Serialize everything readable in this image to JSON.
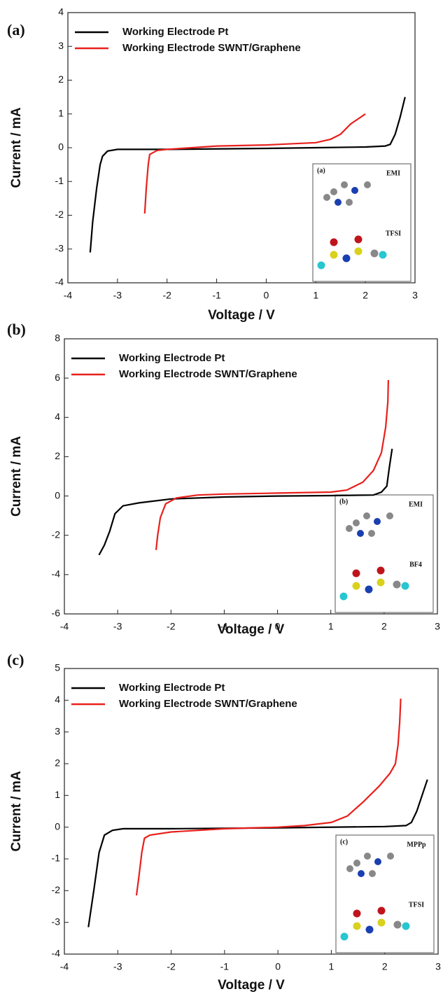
{
  "chart_data": [
    {
      "type": "line",
      "panel_label": "(a)",
      "xlabel": "Voltage / V",
      "ylabel": "Current / mA",
      "xlim": [
        -4,
        3
      ],
      "ylim": [
        -4,
        4
      ],
      "xticks": [
        -4,
        -3,
        -2,
        -1,
        0,
        1,
        2,
        3
      ],
      "yticks": [
        -4,
        -3,
        -2,
        -1,
        0,
        1,
        2,
        3,
        4
      ],
      "series": [
        {
          "name": "Working Electrode Pt",
          "color": "#000000",
          "x": [
            -3.55,
            -3.5,
            -3.42,
            -3.35,
            -3.3,
            -3.2,
            -3.0,
            -2,
            0,
            1,
            2,
            2.4,
            2.5,
            2.6,
            2.7,
            2.8
          ],
          "values": [
            -3.1,
            -2.2,
            -1.2,
            -0.5,
            -0.25,
            -0.1,
            -0.05,
            -0.05,
            -0.02,
            0,
            0.02,
            0.05,
            0.1,
            0.4,
            0.9,
            1.5
          ]
        },
        {
          "name": "Working Electrode SWNT/Graphene",
          "color": "#e8201c",
          "x": [
            -2.45,
            -2.42,
            -2.38,
            -2.35,
            -2.2,
            -2,
            -1,
            0,
            1,
            1.3,
            1.5,
            1.7,
            1.85,
            2
          ],
          "values": [
            -1.95,
            -1.2,
            -0.5,
            -0.2,
            -0.08,
            -0.05,
            0.05,
            0.08,
            0.15,
            0.25,
            0.4,
            0.7,
            0.85,
            1.0
          ]
        }
      ],
      "inset": {
        "label": "(a)",
        "names": [
          "EMI",
          "TFSI"
        ]
      }
    },
    {
      "type": "line",
      "panel_label": "(b)",
      "xlabel": "Voltage / V",
      "ylabel": "Current / mA",
      "xlim": [
        -4,
        3
      ],
      "ylim": [
        -6,
        8
      ],
      "xticks": [
        -4,
        -3,
        -2,
        -1,
        0,
        1,
        2,
        3
      ],
      "yticks": [
        -6,
        -4,
        -2,
        0,
        2,
        4,
        6,
        8
      ],
      "series": [
        {
          "name": "Working Electrode Pt",
          "color": "#000000",
          "x": [
            -3.35,
            -3.25,
            -3.15,
            -3.05,
            -2.9,
            -2.6,
            -2,
            -1,
            0,
            1,
            1.8,
            1.95,
            2.05,
            2.1,
            2.15
          ],
          "values": [
            -3.0,
            -2.5,
            -1.8,
            -0.9,
            -0.5,
            -0.35,
            -0.15,
            -0.05,
            0,
            0.02,
            0.05,
            0.2,
            0.5,
            1.5,
            2.4
          ]
        },
        {
          "name": "Working Electrode SWNT/Graphene",
          "color": "#e8201c",
          "x": [
            -2.28,
            -2.25,
            -2.2,
            -2.1,
            -1.9,
            -1.5,
            -1,
            0,
            1,
            1.3,
            1.6,
            1.8,
            1.95,
            2.03,
            2.07,
            2.08
          ],
          "values": [
            -2.75,
            -2.0,
            -1.1,
            -0.4,
            -0.1,
            0.05,
            0.1,
            0.15,
            0.2,
            0.3,
            0.7,
            1.3,
            2.2,
            3.5,
            4.8,
            5.9
          ]
        }
      ],
      "inset": {
        "label": "(b)",
        "names": [
          "EMI",
          "BF4"
        ]
      }
    },
    {
      "type": "line",
      "panel_label": "(c)",
      "xlabel": "Voltage / V",
      "ylabel": "Current / mA",
      "xlim": [
        -4,
        3
      ],
      "ylim": [
        -4,
        5
      ],
      "xticks": [
        -4,
        -3,
        -2,
        -1,
        0,
        1,
        2,
        3
      ],
      "yticks": [
        -4,
        -3,
        -2,
        -1,
        0,
        1,
        2,
        3,
        4,
        5
      ],
      "series": [
        {
          "name": "Working Electrode Pt",
          "color": "#000000",
          "x": [
            -3.55,
            -3.45,
            -3.35,
            -3.25,
            -3.1,
            -2.9,
            -2,
            0,
            2,
            2.4,
            2.5,
            2.6,
            2.7,
            2.8
          ],
          "values": [
            -3.15,
            -2,
            -0.8,
            -0.25,
            -0.1,
            -0.05,
            -0.05,
            -0.02,
            0.02,
            0.05,
            0.15,
            0.5,
            1.0,
            1.5
          ]
        },
        {
          "name": "Working Electrode SWNT/Graphene",
          "color": "#e8201c",
          "x": [
            -2.65,
            -2.6,
            -2.55,
            -2.5,
            -2.4,
            -2,
            -1,
            0,
            0.5,
            1,
            1.3,
            1.6,
            1.9,
            2.1,
            2.2,
            2.25,
            2.28,
            2.3
          ],
          "values": [
            -2.15,
            -1.5,
            -0.8,
            -0.35,
            -0.25,
            -0.15,
            -0.05,
            0,
            0.05,
            0.15,
            0.35,
            0.8,
            1.3,
            1.7,
            2.0,
            2.6,
            3.3,
            4.05
          ]
        }
      ],
      "inset": {
        "label": "(c)",
        "names": [
          "MPPp",
          "TFSI"
        ]
      }
    }
  ]
}
